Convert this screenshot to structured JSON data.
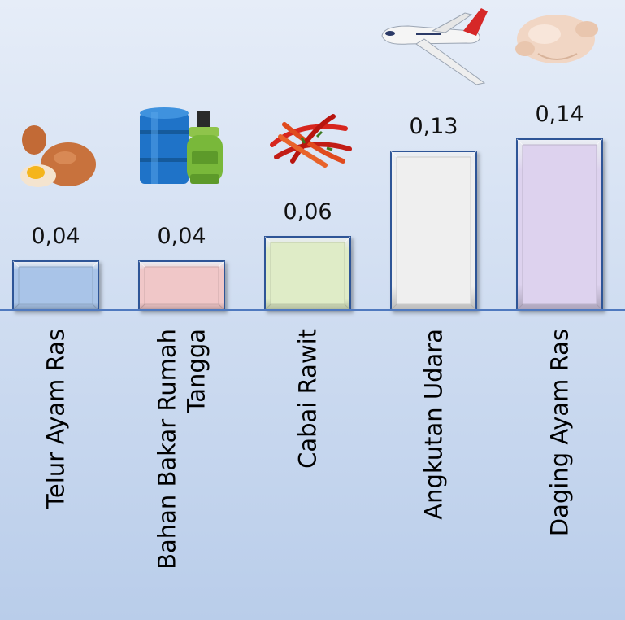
{
  "chart_data": {
    "type": "bar",
    "categories": [
      "Telur Ayam Ras",
      "Bahan Bakar Rumah Tangga",
      "Cabai Rawit",
      "Angkutan Udara",
      "Daging Ayam Ras"
    ],
    "category_lines": [
      [
        "Telur Ayam Ras"
      ],
      [
        "Bahan Bakar Rumah",
        "Tangga"
      ],
      [
        "Cabai Rawit"
      ],
      [
        "Angkutan Udara"
      ],
      [
        "Daging Ayam Ras"
      ]
    ],
    "values": [
      0.04,
      0.04,
      0.06,
      0.13,
      0.14
    ],
    "value_labels": [
      "0,04",
      "0,04",
      "0,06",
      "0,13",
      "0,14"
    ],
    "bar_colors": [
      "#a9c4e8",
      "#f0c7c8",
      "#dfecc7",
      "#efefef",
      "#ddd2ee"
    ],
    "icons": [
      "eggs-icon",
      "fuel-drum-and-gas-cylinder-icon",
      "chili-peppers-icon",
      "airplane-icon",
      "raw-chicken-icon"
    ],
    "grid": false,
    "legend": "none"
  }
}
